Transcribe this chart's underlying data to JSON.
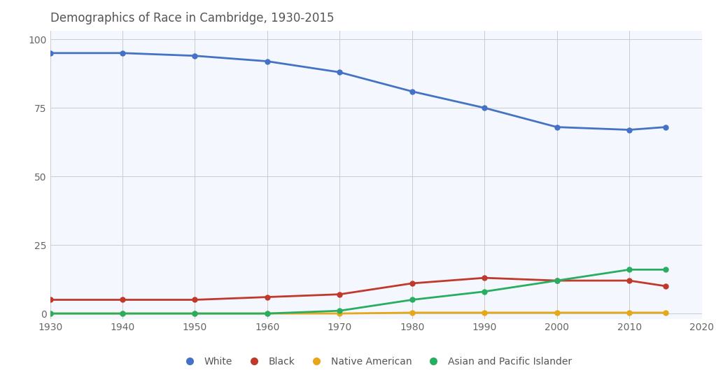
{
  "title": "Demographics of Race in Cambridge, 1930-2015",
  "years": [
    1930,
    1940,
    1950,
    1960,
    1970,
    1980,
    1990,
    2000,
    2010,
    2015
  ],
  "white": [
    95,
    95,
    94,
    92,
    88,
    81,
    75,
    68,
    67,
    68
  ],
  "black": [
    5,
    5,
    5,
    6,
    7,
    11,
    13,
    12,
    12,
    10
  ],
  "native_american": [
    0,
    0,
    0,
    0,
    0,
    0.3,
    0.3,
    0.3,
    0.3,
    0.3
  ],
  "asian": [
    0,
    0,
    0,
    0,
    1,
    5,
    8,
    12,
    16,
    16
  ],
  "white_color": "#4472C4",
  "black_color": "#C0392B",
  "native_american_color": "#E6A817",
  "asian_color": "#27AE60",
  "ylim": [
    -2,
    103
  ],
  "xlim": [
    1930,
    2020
  ],
  "yticks": [
    0,
    25,
    50,
    75,
    100
  ],
  "xticks": [
    1930,
    1940,
    1950,
    1960,
    1970,
    1980,
    1990,
    2000,
    2010,
    2020
  ],
  "title_fontsize": 12,
  "legend_fontsize": 10,
  "tick_fontsize": 10,
  "linewidth": 2.0,
  "markersize": 5,
  "background_color": "#FFFFFF",
  "plot_bg_color": "#F5F7FF",
  "grid_color": "#CCCCCC"
}
